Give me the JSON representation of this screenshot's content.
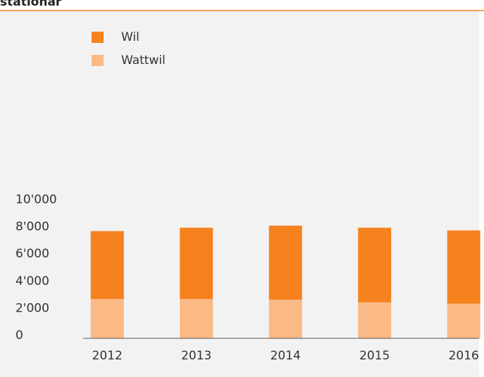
{
  "chart_data": {
    "type": "stacked_bar",
    "title": "stationär",
    "categories": [
      "2012",
      "2013",
      "2014",
      "2015",
      "2016"
    ],
    "series": [
      {
        "name": "Wattwil",
        "color": "#fbb985",
        "values": [
          2900,
          2900,
          2850,
          2650,
          2550
        ]
      },
      {
        "name": "Wil",
        "color": "#f5821f",
        "values": [
          5000,
          5250,
          5450,
          5500,
          5400
        ]
      }
    ],
    "legend_order": [
      "Wil",
      "Wattwil"
    ],
    "ylim": [
      0,
      10000
    ],
    "yticks": [
      0,
      {
        "value": 2000,
        "label": "2'000"
      },
      {
        "value": 4000,
        "label": "4'000"
      },
      {
        "value": 6000,
        "label": "6'000"
      },
      {
        "value": 8000,
        "label": "8'000"
      },
      {
        "value": 10000,
        "label": "10'000"
      }
    ],
    "legend": "top-left"
  }
}
